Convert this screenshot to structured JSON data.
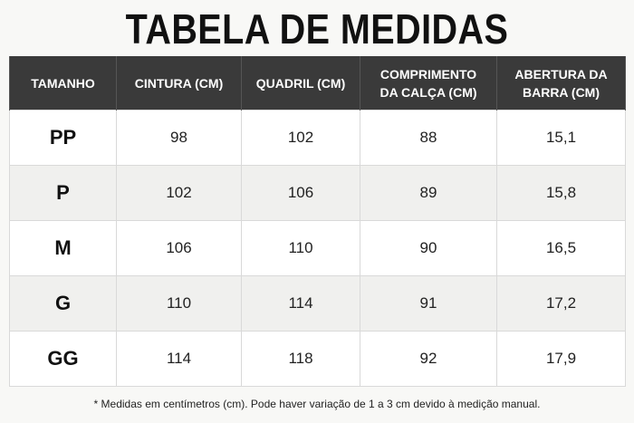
{
  "title": "TABELA DE MEDIDAS",
  "table": {
    "headers": [
      "TAMANHO",
      "CINTURA (CM)",
      "QUADRIL (CM)",
      "COMPRIMENTO\nDA CALÇA (CM)",
      "ABERTURA DA\nBARRA (CM)"
    ],
    "rows": [
      [
        "PP",
        "98",
        "102",
        "88",
        "15,1"
      ],
      [
        "P",
        "102",
        "106",
        "89",
        "15,8"
      ],
      [
        "M",
        "106",
        "110",
        "90",
        "16,5"
      ],
      [
        "G",
        "110",
        "114",
        "91",
        "17,2"
      ],
      [
        "GG",
        "114",
        "118",
        "92",
        "17,9"
      ]
    ]
  },
  "footnote": "* Medidas em centímetros (cm). Pode haver variação de 1 a 3 cm devido à medição manual."
}
